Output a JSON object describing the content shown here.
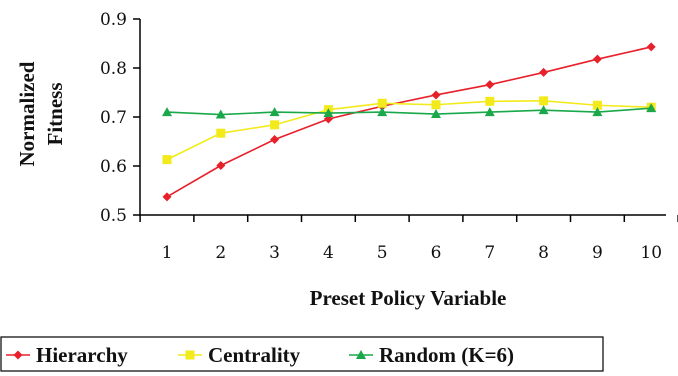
{
  "chart_data": {
    "type": "line",
    "title": "",
    "xlabel": "Preset Policy Variable",
    "ylabel_lines": [
      "Normalized",
      "Fitness"
    ],
    "x": [
      1,
      2,
      3,
      4,
      5,
      6,
      7,
      8,
      9,
      10
    ],
    "x_tick_labels": [
      "1",
      "2",
      "3",
      "4",
      "5",
      "6",
      "7",
      "8",
      "9",
      "10"
    ],
    "ylim": [
      0.5,
      0.9
    ],
    "y_tick_labels": [
      "0.5",
      "0.6",
      "0.7",
      "0.8",
      "0.9"
    ],
    "y_ticks": [
      0.5,
      0.6,
      0.7,
      0.8,
      0.9
    ],
    "grid": false,
    "legend_position": "bottom",
    "series": [
      {
        "name": "Hierarchy",
        "color": "#e8202a",
        "marker": "diamond",
        "values": [
          0.537,
          0.601,
          0.654,
          0.696,
          0.722,
          0.745,
          0.766,
          0.791,
          0.818,
          0.843
        ]
      },
      {
        "name": "Centrality",
        "color": "#f2ea1a",
        "marker": "square",
        "values": [
          0.613,
          0.667,
          0.684,
          0.715,
          0.728,
          0.725,
          0.732,
          0.733,
          0.724,
          0.72
        ]
      },
      {
        "name": "Random (K=6)",
        "color": "#1aa84a",
        "marker": "triangle",
        "values": [
          0.71,
          0.705,
          0.71,
          0.708,
          0.71,
          0.706,
          0.71,
          0.714,
          0.71,
          0.718
        ]
      }
    ]
  }
}
